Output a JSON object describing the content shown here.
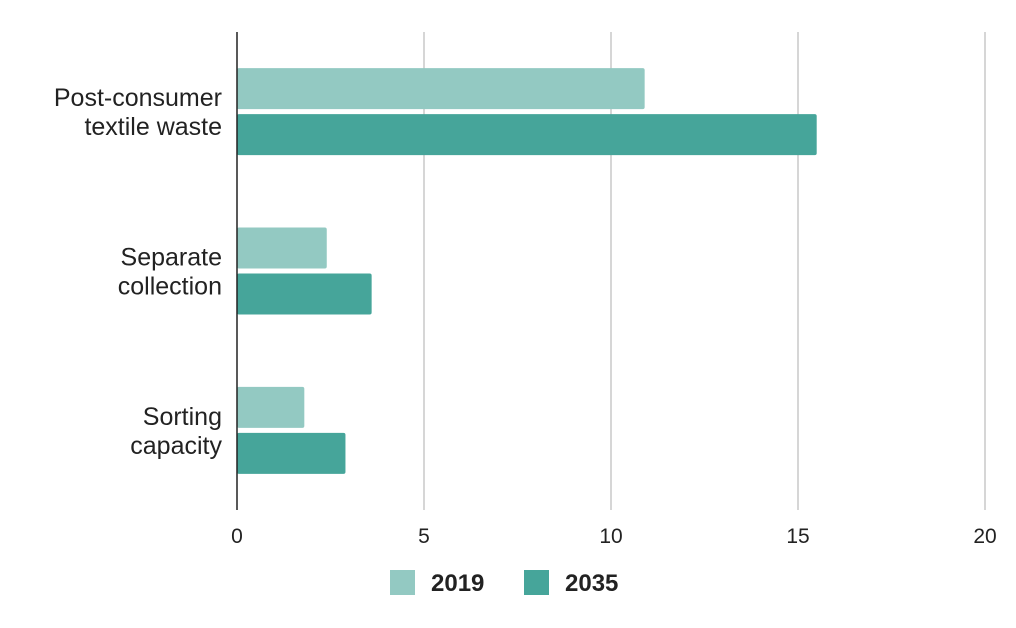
{
  "chart_data": {
    "type": "bar",
    "orientation": "horizontal",
    "categories": [
      [
        "Post-consumer",
        "textile waste"
      ],
      [
        "Separate",
        "collection"
      ],
      [
        "Sorting",
        "capacity"
      ]
    ],
    "series": [
      {
        "name": "2019",
        "color": "#93c9c2",
        "values": [
          10.9,
          2.4,
          1.8
        ]
      },
      {
        "name": "2035",
        "color": "#46a59a",
        "values": [
          15.5,
          3.6,
          2.9
        ]
      }
    ],
    "xlim": [
      0,
      20
    ],
    "xticks": [
      "0",
      "5",
      "10",
      "15",
      "20"
    ],
    "grid": true,
    "legend_position": "bottom",
    "title": "",
    "xlabel": "",
    "ylabel": ""
  }
}
